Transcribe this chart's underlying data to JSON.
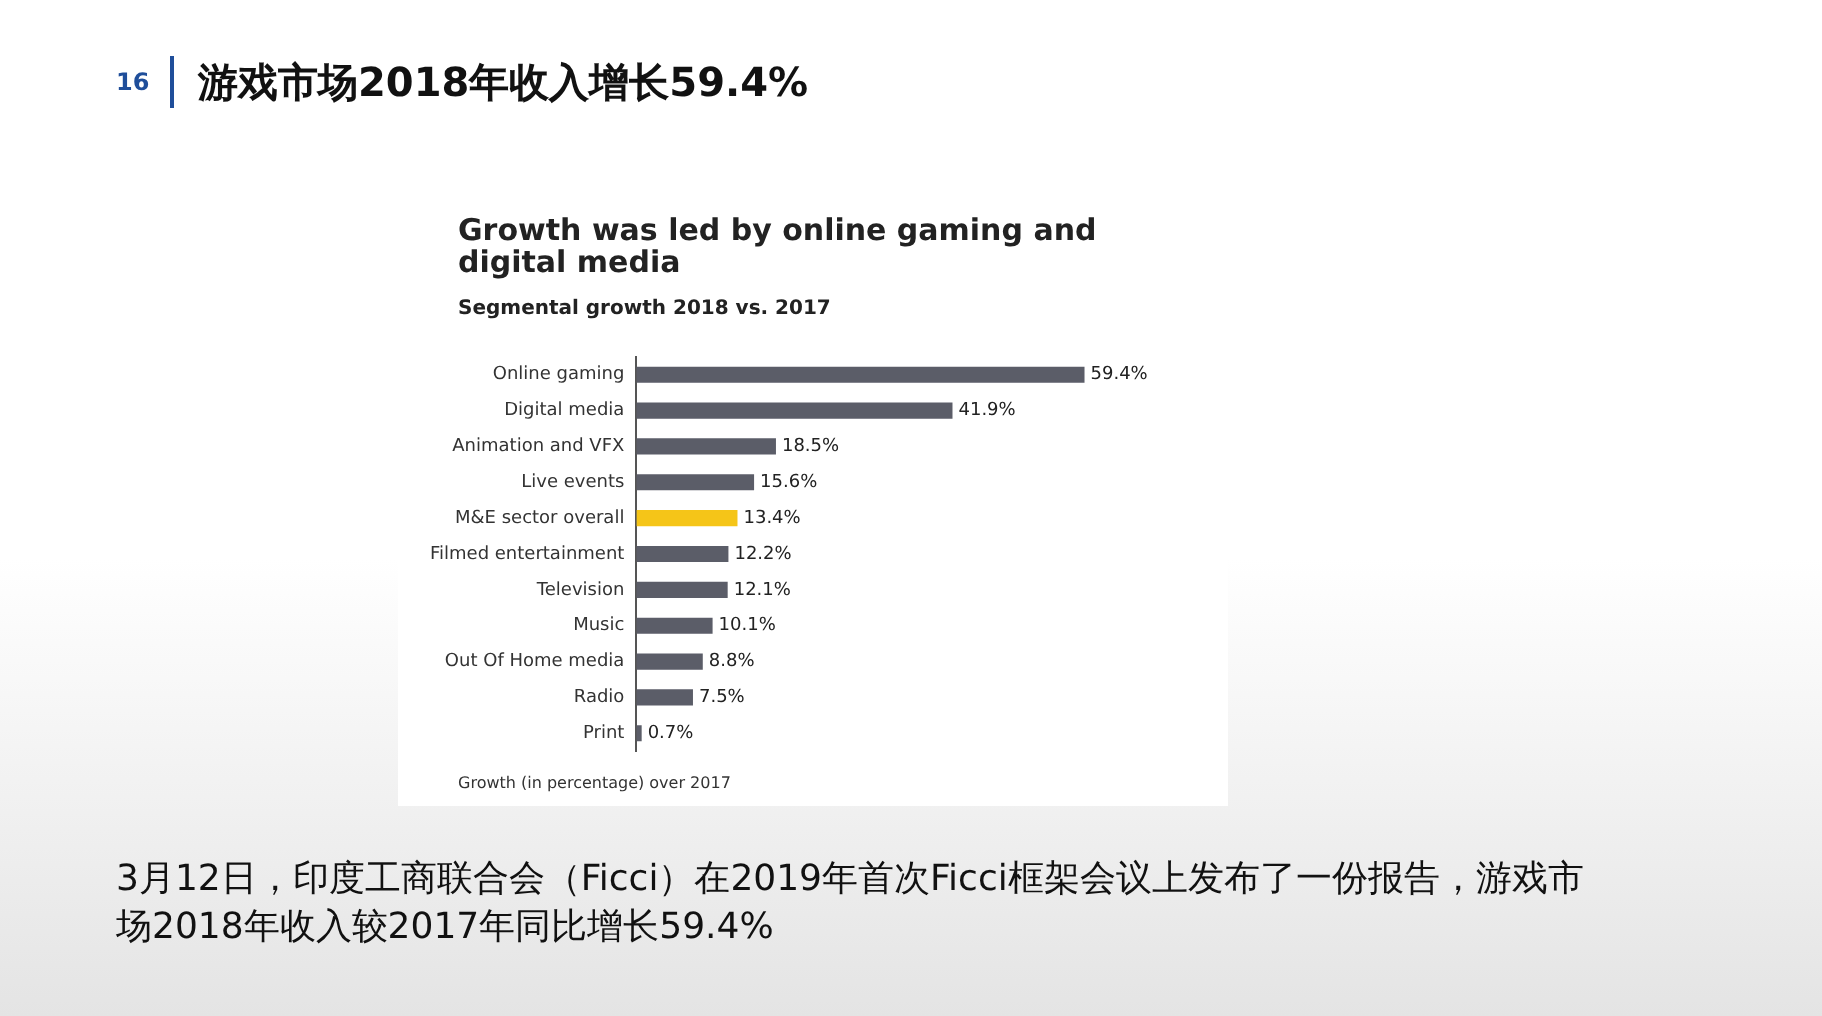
{
  "chart_data": {
    "type": "bar",
    "orientation": "horizontal",
    "title": "游戏市场2018年收入增长59.4%",
    "subtitle": "Growth was led by online gaming and digital media",
    "xlabel": "Segmental growth 2018 vs. 2017",
    "categories": [
      "Online gaming",
      "Digital media",
      "Animation and VFX",
      "Live events",
      "M&E sector overall",
      "Filmed entertainment",
      "Television",
      "Music",
      "Out Of Home media",
      "Radio",
      "Print"
    ],
    "values": [
      59.4,
      41.9,
      18.5,
      15.6,
      13.4,
      12.2,
      12.1,
      10.1,
      8.8,
      7.5,
      0.7
    ],
    "value_labels": [
      "59.4%",
      "41.9%",
      "18.5%",
      "15.6%",
      "13.4%",
      "12.2%",
      "12.1%",
      "10.1%",
      "8.8%",
      "7.5%",
      "0.7%"
    ],
    "colors": [
      "#5b5d68",
      "#5b5d68",
      "#5b5d68",
      "#5b5d68",
      "#f5c518",
      "#5b5d68",
      "#5b5d68",
      "#5b5d68",
      "#5b5d68",
      "#5b5d68",
      "#5b5d68"
    ],
    "legend": false,
    "annotations": [
      "16",
      "Growth (in percentage) over 2017",
      "3月12日，印度工商联合会（Ficci）在2019年首次Ficci框架会议上发布了一份报告，游戏市场2018年收入较2017年同比增长59.4%"
    ]
  }
}
